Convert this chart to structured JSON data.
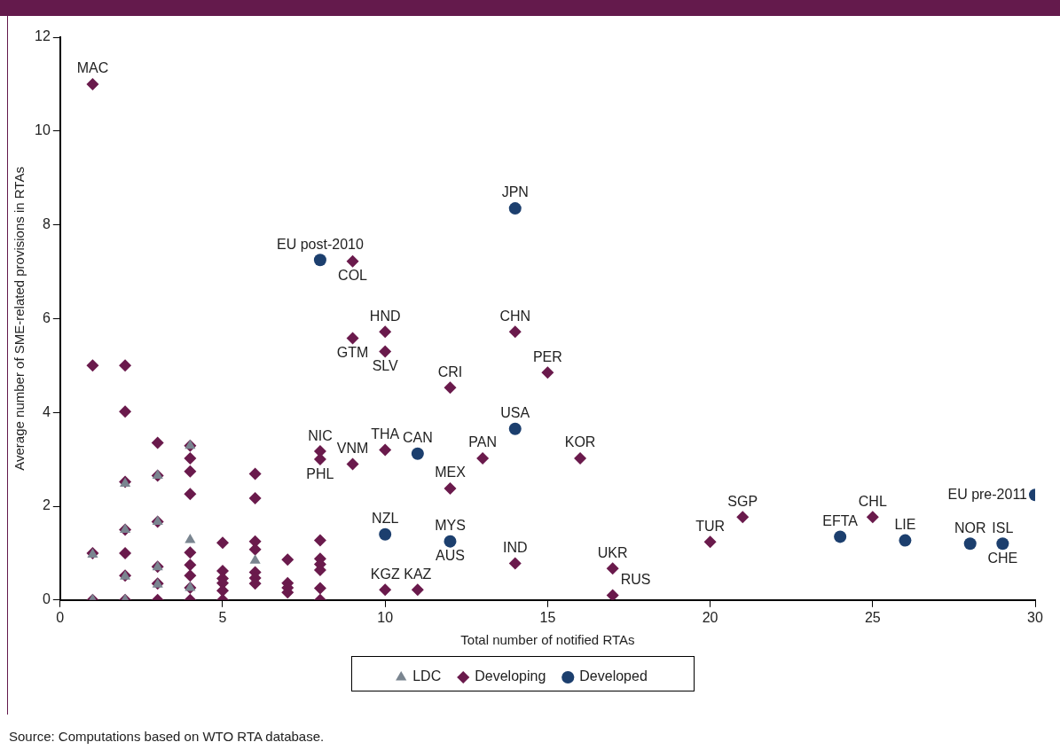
{
  "chart_data": {
    "type": "scatter",
    "xlabel": "Total number of notified RTAs",
    "ylabel": "Average number of SME-related provisions in RTAs",
    "xlim": [
      0,
      30
    ],
    "xticks": [
      0,
      5,
      10,
      15,
      20,
      25,
      30
    ],
    "ylim": [
      0,
      12
    ],
    "yticks": [
      0,
      2,
      4,
      6,
      8,
      10,
      12
    ],
    "grid": false,
    "legend": "bottom",
    "series": [
      {
        "name": "Developed",
        "color": "#1c3f6e",
        "marker": "circle",
        "x": [
          8,
          14,
          14,
          11,
          10,
          12,
          24,
          26,
          28,
          29,
          30
        ],
        "values": [
          7.25,
          8.35,
          3.65,
          3.12,
          1.4,
          1.25,
          1.35,
          1.27,
          1.2,
          1.2,
          2.24
        ]
      },
      {
        "name": "Developing",
        "color": "#6a1a4c",
        "marker": "diamond",
        "x": [
          1,
          1,
          1,
          1,
          2,
          2,
          2,
          2,
          2,
          2,
          2,
          3,
          3,
          3,
          3,
          3,
          3,
          4,
          4,
          4,
          4,
          4,
          4,
          4,
          4,
          4,
          5,
          5,
          5,
          5,
          5,
          5,
          6,
          6,
          6,
          6,
          6,
          6,
          6,
          7,
          7,
          7,
          7,
          8,
          8,
          8,
          8,
          8,
          8,
          8,
          8,
          9,
          9,
          9,
          10,
          10,
          10,
          10,
          11,
          12,
          12,
          13,
          14,
          14,
          15,
          16,
          17,
          17,
          20,
          21,
          25
        ],
        "values": [
          11,
          5,
          1,
          0,
          5,
          4.02,
          2.52,
          1.5,
          1,
          0.52,
          0,
          3.35,
          2.65,
          1.67,
          0.71,
          0.35,
          0,
          3.29,
          3.02,
          2.74,
          2.26,
          1.01,
          0.75,
          0.52,
          0.26,
          0,
          1.22,
          0.62,
          0.46,
          0.36,
          0.2,
          0,
          2.69,
          2.17,
          1.25,
          1.08,
          0.59,
          0.47,
          0.35,
          0.86,
          0.36,
          0.26,
          0.16,
          3.17,
          3.0,
          1.27,
          0.88,
          0.76,
          0.64,
          0.25,
          0,
          7.22,
          5.58,
          2.9,
          5.72,
          5.3,
          3.2,
          0.22,
          0.22,
          4.53,
          2.38,
          3.02,
          5.72,
          0.78,
          4.85,
          3.02,
          0.67,
          0.1,
          1.24,
          1.77,
          1.77
        ]
      },
      {
        "name": "LDC",
        "color": "#7a8590",
        "marker": "triangle",
        "x": [
          1,
          1,
          2,
          2,
          2,
          2,
          3,
          3,
          3,
          3,
          4,
          4,
          4,
          6
        ],
        "values": [
          0.97,
          0,
          2.48,
          1.5,
          0.5,
          0,
          2.65,
          1.67,
          0.7,
          0.33,
          3.29,
          1.28,
          0.26,
          0.84
        ]
      }
    ],
    "annotations": [
      {
        "text": "MAC",
        "x": 1,
        "y": 11
      },
      {
        "text": "EU post-2010",
        "x": 8,
        "y": 7.25
      },
      {
        "text": "COL",
        "x": 9,
        "y": 7.22
      },
      {
        "text": "JPN",
        "x": 14,
        "y": 8.35
      },
      {
        "text": "HND",
        "x": 10,
        "y": 5.72
      },
      {
        "text": "GTM",
        "x": 9,
        "y": 5.58
      },
      {
        "text": "SLV",
        "x": 10,
        "y": 5.3
      },
      {
        "text": "CHN",
        "x": 14,
        "y": 5.72
      },
      {
        "text": "PER",
        "x": 15,
        "y": 4.85
      },
      {
        "text": "CRI",
        "x": 12,
        "y": 4.53
      },
      {
        "text": "USA",
        "x": 14,
        "y": 3.65
      },
      {
        "text": "CAN",
        "x": 11,
        "y": 3.12
      },
      {
        "text": "PAN",
        "x": 13,
        "y": 3.02
      },
      {
        "text": "KOR",
        "x": 16,
        "y": 3.02
      },
      {
        "text": "NIC",
        "x": 8,
        "y": 3.17
      },
      {
        "text": "VNM",
        "x": 9,
        "y": 2.9
      },
      {
        "text": "PHL",
        "x": 8,
        "y": 3.0
      },
      {
        "text": "THA",
        "x": 10,
        "y": 3.2
      },
      {
        "text": "MEX",
        "x": 12,
        "y": 2.38
      },
      {
        "text": "MYS",
        "x": 12,
        "y": 1.25
      },
      {
        "text": "NZL",
        "x": 10,
        "y": 1.4
      },
      {
        "text": "AUS",
        "x": 12,
        "y": 1.25
      },
      {
        "text": "IND",
        "x": 14,
        "y": 0.78
      },
      {
        "text": "KGZ",
        "x": 10,
        "y": 0.22
      },
      {
        "text": "KAZ",
        "x": 11,
        "y": 0.22
      },
      {
        "text": "UKR",
        "x": 17,
        "y": 0.67
      },
      {
        "text": "RUS",
        "x": 17,
        "y": 0.1
      },
      {
        "text": "TUR",
        "x": 20,
        "y": 1.24
      },
      {
        "text": "SGP",
        "x": 21,
        "y": 1.77
      },
      {
        "text": "EFTA",
        "x": 24,
        "y": 1.35
      },
      {
        "text": "CHL",
        "x": 25,
        "y": 1.77
      },
      {
        "text": "LIE",
        "x": 26,
        "y": 1.27
      },
      {
        "text": "NOR",
        "x": 28,
        "y": 1.2
      },
      {
        "text": "CHE",
        "x": 29,
        "y": 1.2
      },
      {
        "text": "ISL",
        "x": 29,
        "y": 1.2
      },
      {
        "text": "EU pre-2011",
        "x": 30,
        "y": 2.24
      },
      "Source: Computations based on WTO RTA database."
    ]
  }
}
